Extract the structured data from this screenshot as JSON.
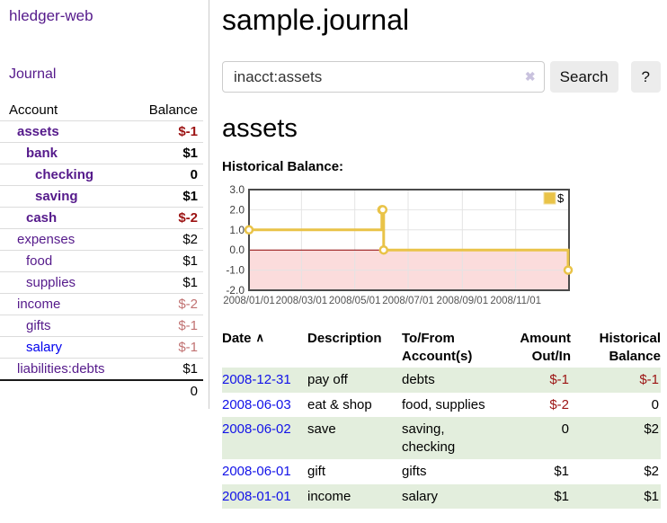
{
  "sidebar": {
    "app_title": "hledger-web",
    "nav": {
      "journal_label": "Journal"
    },
    "accounts_table": {
      "headers": {
        "account": "Account",
        "balance": "Balance"
      },
      "rows": [
        {
          "name": "assets",
          "depth": 1,
          "bold": true,
          "balance": "$-1",
          "bal_style": "neg",
          "link": "visited"
        },
        {
          "name": "bank",
          "depth": 2,
          "bold": true,
          "balance": "$1",
          "bal_style": "normal",
          "link": "visited"
        },
        {
          "name": "checking",
          "depth": 3,
          "bold": true,
          "balance": "0",
          "bal_style": "normal",
          "link": "visited"
        },
        {
          "name": "saving",
          "depth": 3,
          "bold": true,
          "balance": "$1",
          "bal_style": "normal",
          "link": "visited"
        },
        {
          "name": "cash",
          "depth": 2,
          "bold": true,
          "balance": "$-2",
          "bal_style": "neg",
          "link": "visited"
        },
        {
          "name": "expenses",
          "depth": 1,
          "bold": false,
          "balance": "$2",
          "bal_style": "normal",
          "link": "visited"
        },
        {
          "name": "food",
          "depth": 2,
          "bold": false,
          "balance": "$1",
          "bal_style": "normal",
          "link": "visited"
        },
        {
          "name": "supplies",
          "depth": 2,
          "bold": false,
          "balance": "$1",
          "bal_style": "normal",
          "link": "visited"
        },
        {
          "name": "income",
          "depth": 1,
          "bold": false,
          "balance": "$-2",
          "bal_style": "neg-faded",
          "link": "visited"
        },
        {
          "name": "gifts",
          "depth": 2,
          "bold": false,
          "balance": "$-1",
          "bal_style": "neg-faded",
          "link": "visited"
        },
        {
          "name": "salary",
          "depth": 2,
          "bold": false,
          "balance": "$-1",
          "bal_style": "neg-faded",
          "link": "unvisited"
        },
        {
          "name": "liabilities:debts",
          "depth": 1,
          "bold": false,
          "balance": "$1",
          "bal_style": "normal",
          "link": "visited"
        }
      ],
      "total": "0"
    }
  },
  "header": {
    "title": "sample.journal"
  },
  "search": {
    "value": "inacct:assets",
    "clear_icon": "✖",
    "button_label": "Search",
    "help_label": "?"
  },
  "account_page": {
    "title": "assets",
    "chart_label": "Historical Balance:"
  },
  "chart_data": {
    "type": "line",
    "step": true,
    "title": "Historical Balance:",
    "series": [
      {
        "name": "$",
        "points": [
          [
            "2008-01-01",
            1
          ],
          [
            "2008-06-01",
            2
          ],
          [
            "2008-06-02",
            2
          ],
          [
            "2008-06-03",
            0
          ],
          [
            "2008-12-31",
            -1
          ]
        ]
      }
    ],
    "x_ticks": [
      "2008/01/01",
      "2008/03/01",
      "2008/05/01",
      "2008/07/01",
      "2008/09/01",
      "2008/11/01"
    ],
    "x_range": [
      "2008-01-01",
      "2009-01-01"
    ],
    "y_ticks": [
      3.0,
      2.0,
      1.0,
      0.0,
      -1.0,
      -2.0
    ],
    "ylim": [
      -2,
      3
    ],
    "grid": true,
    "legend": {
      "label": "$",
      "position": "top-right"
    },
    "line_color": "#e9c348",
    "marker_fill": "#ffffff",
    "zero_line_color": "#8b0000",
    "negative_region_color": "#fbdcdc",
    "gridline_color": "#e4e4e4",
    "border_color": "#4a4a4a"
  },
  "register": {
    "columns": [
      "Date",
      "Description",
      "To/From Account(s)",
      "Amount Out/In",
      "Historical Balance"
    ],
    "sort_indicator": "∧",
    "rows": [
      {
        "date": "2008-12-31",
        "description": "pay off",
        "accounts": "debts",
        "amount": "$-1",
        "amount_style": "neg",
        "balance": "$-1",
        "bal_style": "neg",
        "shaded": true
      },
      {
        "date": "2008-06-03",
        "description": "eat & shop",
        "accounts": "food, supplies",
        "amount": "$-2",
        "amount_style": "neg",
        "balance": "0",
        "bal_style": "normal",
        "shaded": false
      },
      {
        "date": "2008-06-02",
        "description": "save",
        "accounts": "saving, checking",
        "amount": "0",
        "amount_style": "normal",
        "balance": "$2",
        "bal_style": "normal",
        "shaded": true
      },
      {
        "date": "2008-06-01",
        "description": "gift",
        "accounts": "gifts",
        "amount": "$1",
        "amount_style": "normal",
        "balance": "$2",
        "bal_style": "normal",
        "shaded": false
      },
      {
        "date": "2008-01-01",
        "description": "income",
        "accounts": "salary",
        "amount": "$1",
        "amount_style": "normal",
        "balance": "$1",
        "bal_style": "normal",
        "shaded": true
      }
    ]
  },
  "colors": {
    "link_purple": "#551a8b",
    "link_blue": "#0000ee",
    "negative_strong": "#9c1313",
    "negative_faded": "#c17272",
    "row_shade_green": "#e3eedd",
    "sidebar_divider": "#cccccc"
  }
}
